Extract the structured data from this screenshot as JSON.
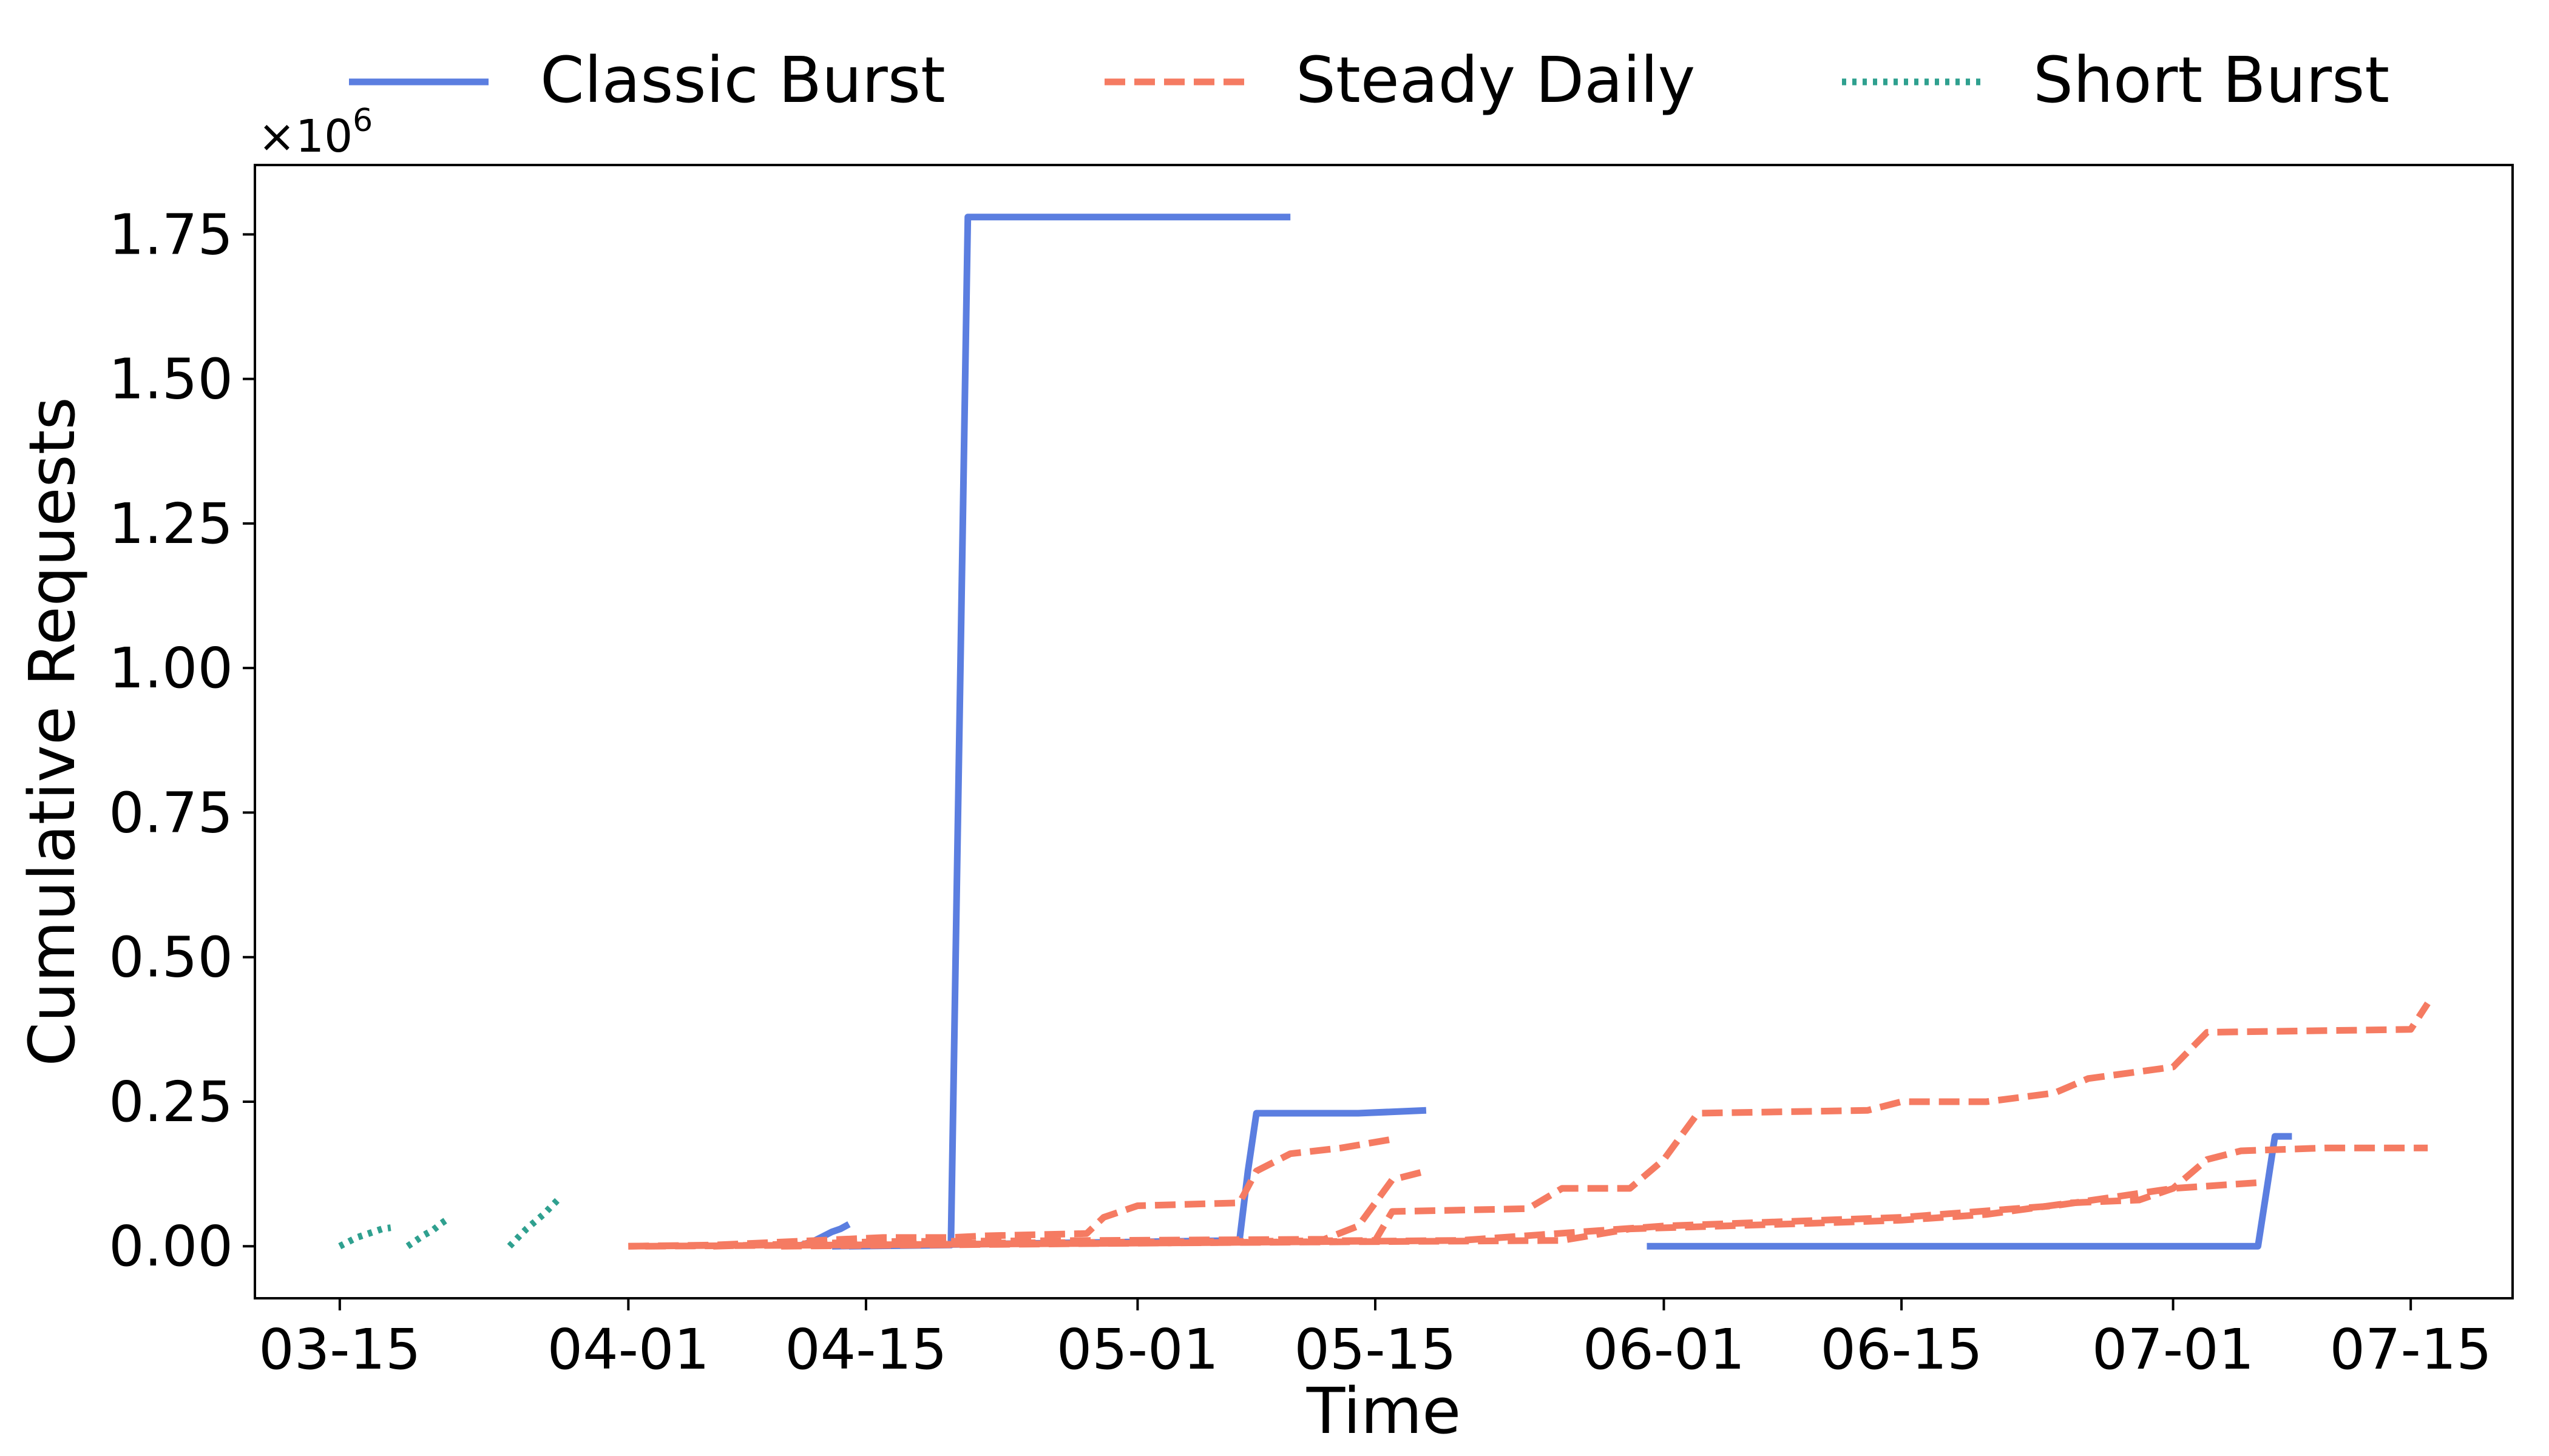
{
  "chart_data": {
    "type": "line",
    "title": "",
    "xlabel": "Time",
    "ylabel": "Cumulative Requests",
    "y_multiplier_label": "×10",
    "y_multiplier_exponent": "6",
    "ylim": [
      -90000,
      1870000
    ],
    "xlim": [
      "2025-03-10",
      "2025-07-21"
    ],
    "legend_position": "top",
    "grid": false,
    "x_ticks": [
      {
        "date": "2025-03-15",
        "label": "03-15"
      },
      {
        "date": "2025-04-01",
        "label": "04-01"
      },
      {
        "date": "2025-04-15",
        "label": "04-15"
      },
      {
        "date": "2025-05-01",
        "label": "05-01"
      },
      {
        "date": "2025-05-15",
        "label": "05-15"
      },
      {
        "date": "2025-06-01",
        "label": "06-01"
      },
      {
        "date": "2025-06-15",
        "label": "06-15"
      },
      {
        "date": "2025-07-01",
        "label": "07-01"
      },
      {
        "date": "2025-07-15",
        "label": "07-15"
      }
    ],
    "y_ticks": [
      {
        "value": 0,
        "label": "0.00"
      },
      {
        "value": 250000,
        "label": "0.25"
      },
      {
        "value": 500000,
        "label": "0.50"
      },
      {
        "value": 750000,
        "label": "0.75"
      },
      {
        "value": 1000000,
        "label": "1.00"
      },
      {
        "value": 1250000,
        "label": "1.25"
      },
      {
        "value": 1500000,
        "label": "1.50"
      },
      {
        "value": 1750000,
        "label": "1.75"
      }
    ],
    "groups": [
      {
        "name": "Classic Burst",
        "color": "#5b7ee0",
        "dash": "solid"
      },
      {
        "name": "Steady Daily",
        "color": "#f57b62",
        "dash": "dashed"
      },
      {
        "name": "Short Burst",
        "color": "#2fa08f",
        "dash": "dotted"
      }
    ],
    "series": [
      {
        "group": "Short Burst",
        "points": [
          [
            "2025-03-15",
            0
          ],
          [
            "2025-03-16",
            15000
          ],
          [
            "2025-03-17",
            25000
          ],
          [
            "2025-03-17 12:00",
            30000
          ],
          [
            "2025-03-18",
            32000
          ]
        ]
      },
      {
        "group": "Short Burst",
        "points": [
          [
            "2025-03-19",
            0
          ],
          [
            "2025-03-20",
            20000
          ],
          [
            "2025-03-20 12:00",
            28000
          ],
          [
            "2025-03-21",
            40000
          ],
          [
            "2025-03-21 12:00",
            50000
          ]
        ]
      },
      {
        "group": "Short Burst",
        "points": [
          [
            "2025-03-25",
            0
          ],
          [
            "2025-03-26",
            30000
          ],
          [
            "2025-03-27",
            55000
          ],
          [
            "2025-03-27 12:00",
            70000
          ],
          [
            "2025-03-28",
            85000
          ]
        ]
      },
      {
        "group": "Classic Burst",
        "points": [
          [
            "2025-04-11",
            0
          ],
          [
            "2025-04-12",
            10000
          ],
          [
            "2025-04-13",
            25000
          ],
          [
            "2025-04-13 12:00",
            30000
          ],
          [
            "2025-04-14",
            38000
          ]
        ]
      },
      {
        "group": "Classic Burst",
        "points": [
          [
            "2025-04-14",
            0
          ],
          [
            "2025-04-20",
            2000
          ],
          [
            "2025-04-21",
            1780000
          ],
          [
            "2025-05-10",
            1780000
          ]
        ]
      },
      {
        "group": "Classic Burst",
        "points": [
          [
            "2025-04-13",
            0
          ],
          [
            "2025-05-07",
            10000
          ],
          [
            "2025-05-07 12:00",
            130000
          ],
          [
            "2025-05-08",
            230000
          ],
          [
            "2025-05-14",
            230000
          ],
          [
            "2025-05-18",
            235000
          ]
        ]
      },
      {
        "group": "Classic Burst",
        "points": [
          [
            "2025-05-31",
            0
          ],
          [
            "2025-07-06",
            0
          ],
          [
            "2025-07-07",
            190000
          ],
          [
            "2025-07-08",
            190000
          ]
        ]
      },
      {
        "group": "Steady Daily",
        "points": [
          [
            "2025-04-01",
            0
          ],
          [
            "2025-04-06",
            2000
          ],
          [
            "2025-04-16",
            15000
          ],
          [
            "2025-04-20",
            15000
          ],
          [
            "2025-04-22",
            18000
          ],
          [
            "2025-04-28",
            22000
          ],
          [
            "2025-04-29",
            50000
          ],
          [
            "2025-05-01",
            70000
          ],
          [
            "2025-05-07",
            75000
          ],
          [
            "2025-05-08",
            130000
          ],
          [
            "2025-05-10",
            160000
          ],
          [
            "2025-05-13",
            170000
          ],
          [
            "2025-05-16",
            185000
          ]
        ]
      },
      {
        "group": "Steady Daily",
        "points": [
          [
            "2025-04-06",
            0
          ],
          [
            "2025-04-16",
            8000
          ],
          [
            "2025-05-12",
            12000
          ],
          [
            "2025-05-14",
            35000
          ],
          [
            "2025-05-16",
            115000
          ],
          [
            "2025-05-18",
            130000
          ]
        ]
      },
      {
        "group": "Steady Daily",
        "points": [
          [
            "2025-04-01",
            0
          ],
          [
            "2025-04-20",
            5000
          ],
          [
            "2025-05-15",
            10000
          ],
          [
            "2025-05-16",
            60000
          ],
          [
            "2025-05-24",
            65000
          ],
          [
            "2025-05-26",
            100000
          ],
          [
            "2025-05-30",
            100000
          ],
          [
            "2025-06-01",
            150000
          ],
          [
            "2025-06-03",
            230000
          ],
          [
            "2025-06-13",
            235000
          ],
          [
            "2025-06-15",
            250000
          ],
          [
            "2025-06-20",
            250000
          ],
          [
            "2025-06-24",
            265000
          ],
          [
            "2025-06-26",
            290000
          ],
          [
            "2025-07-01",
            310000
          ],
          [
            "2025-07-03",
            370000
          ],
          [
            "2025-07-15",
            375000
          ],
          [
            "2025-07-16",
            420000
          ]
        ]
      },
      {
        "group": "Steady Daily",
        "points": [
          [
            "2025-04-02",
            0
          ],
          [
            "2025-05-26",
            10000
          ],
          [
            "2025-05-30",
            30000
          ],
          [
            "2025-06-10",
            40000
          ],
          [
            "2025-06-15",
            45000
          ],
          [
            "2025-06-20",
            55000
          ],
          [
            "2025-06-25",
            75000
          ],
          [
            "2025-06-29",
            80000
          ],
          [
            "2025-07-01",
            100000
          ],
          [
            "2025-07-03",
            150000
          ],
          [
            "2025-07-05",
            165000
          ],
          [
            "2025-07-10",
            170000
          ],
          [
            "2025-07-16",
            170000
          ]
        ]
      },
      {
        "group": "Steady Daily",
        "points": [
          [
            "2025-04-10",
            0
          ],
          [
            "2025-05-20",
            10000
          ],
          [
            "2025-06-01",
            35000
          ],
          [
            "2025-06-15",
            50000
          ],
          [
            "2025-06-24",
            70000
          ],
          [
            "2025-07-01",
            100000
          ],
          [
            "2025-07-06",
            110000
          ]
        ]
      }
    ]
  }
}
